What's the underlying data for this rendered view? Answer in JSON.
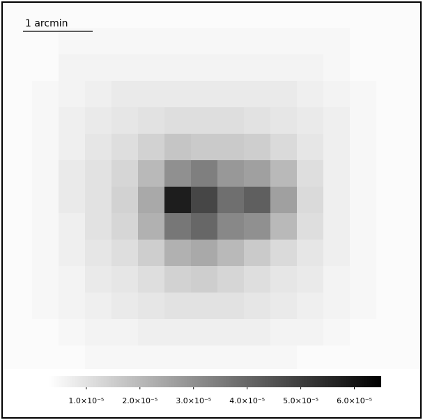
{
  "scalebar": {
    "label": "1 arcmin"
  },
  "image": {
    "pixels": [
      [
        4e-06,
        4e-06,
        4e-06,
        4e-06,
        4e-06,
        4e-06,
        4e-06,
        4e-06,
        4e-06,
        4e-06,
        4e-06,
        4e-06,
        4e-06,
        4e-06,
        4e-06
      ],
      [
        4e-06,
        4e-06,
        5e-06,
        5e-06,
        5e-06,
        5e-06,
        5e-06,
        5e-06,
        5e-06,
        5e-06,
        5e-06,
        5e-06,
        5e-06,
        4e-06,
        4e-06
      ],
      [
        4e-06,
        4e-06,
        6e-06,
        6e-06,
        6e-06,
        6e-06,
        6e-06,
        6e-06,
        6e-06,
        6e-06,
        6e-06,
        6e-06,
        5e-06,
        4e-06,
        4e-06
      ],
      [
        4e-06,
        5e-06,
        6e-06,
        7e-06,
        8e-06,
        8e-06,
        8e-06,
        8e-06,
        8e-06,
        8e-06,
        8e-06,
        7e-06,
        6e-06,
        5e-06,
        4e-06
      ],
      [
        4e-06,
        5e-06,
        7e-06,
        8e-06,
        9e-06,
        1e-05,
        1.1e-05,
        1.1e-05,
        1.1e-05,
        1e-05,
        9e-06,
        8e-06,
        7e-06,
        5e-06,
        4e-06
      ],
      [
        4e-06,
        5e-06,
        7e-06,
        9e-06,
        1.1e-05,
        1.4e-05,
        1.7e-05,
        1.6e-05,
        1.6e-05,
        1.5e-05,
        1.2e-05,
        9e-06,
        7e-06,
        5e-06,
        4e-06
      ],
      [
        4e-06,
        5e-06,
        8e-06,
        1e-05,
        1.3e-05,
        2e-05,
        3e-05,
        3.4e-05,
        2.8e-05,
        2.6e-05,
        2e-05,
        1.1e-05,
        7e-06,
        5e-06,
        4e-06
      ],
      [
        4e-06,
        5e-06,
        8e-06,
        1e-05,
        1.4e-05,
        2.4e-05,
        5.8e-05,
        4.8e-05,
        3.8e-05,
        4.2e-05,
        2.6e-05,
        1.2e-05,
        7e-06,
        5e-06,
        4e-06
      ],
      [
        4e-06,
        5e-06,
        7e-06,
        1e-05,
        1.3e-05,
        2.2e-05,
        3.6e-05,
        4e-05,
        3.2e-05,
        3e-05,
        2e-05,
        1.1e-05,
        7e-06,
        5e-06,
        4e-06
      ],
      [
        4e-06,
        5e-06,
        7e-06,
        9e-06,
        1.1e-05,
        1.5e-05,
        2.2e-05,
        2.4e-05,
        2e-05,
        1.6e-05,
        1.2e-05,
        9e-06,
        7e-06,
        5e-06,
        4e-06
      ],
      [
        4e-06,
        5e-06,
        6e-06,
        8e-06,
        9e-06,
        1.1e-05,
        1.4e-05,
        1.5e-05,
        1.3e-05,
        1.1e-05,
        9e-06,
        8e-06,
        6e-06,
        5e-06,
        4e-06
      ],
      [
        4e-06,
        5e-06,
        6e-06,
        7e-06,
        8e-06,
        9e-06,
        1e-05,
        1e-05,
        1e-05,
        9e-06,
        8e-06,
        7e-06,
        6e-06,
        5e-06,
        4e-06
      ],
      [
        4e-06,
        4e-06,
        5e-06,
        6e-06,
        6e-06,
        7e-06,
        7e-06,
        7e-06,
        7e-06,
        7e-06,
        6e-06,
        6e-06,
        5e-06,
        4e-06,
        4e-06
      ],
      [
        4e-06,
        4e-06,
        4e-06,
        5e-06,
        5e-06,
        5e-06,
        5e-06,
        5e-06,
        5e-06,
        5e-06,
        5e-06,
        4e-06,
        4e-06,
        4e-06,
        4e-06
      ],
      [
        4e-06,
        4e-06,
        4e-06,
        4e-06,
        4e-06,
        4e-06,
        4e-06,
        4e-06,
        4e-06,
        4e-06,
        4e-06,
        4e-06,
        4e-06,
        4e-06,
        4e-06
      ]
    ]
  },
  "colorbar": {
    "clim": [
      3e-06,
      6.5e-05
    ],
    "ticks": [
      {
        "value": 1e-05,
        "label": "1.0×10⁻⁵"
      },
      {
        "value": 2e-05,
        "label": "2.0×10⁻⁵"
      },
      {
        "value": 3e-05,
        "label": "3.0×10⁻⁵"
      },
      {
        "value": 4e-05,
        "label": "4.0×10⁻⁵"
      },
      {
        "value": 5e-05,
        "label": "5.0×10⁻⁵"
      },
      {
        "value": 6e-05,
        "label": "6.0×10⁻⁵"
      }
    ]
  }
}
